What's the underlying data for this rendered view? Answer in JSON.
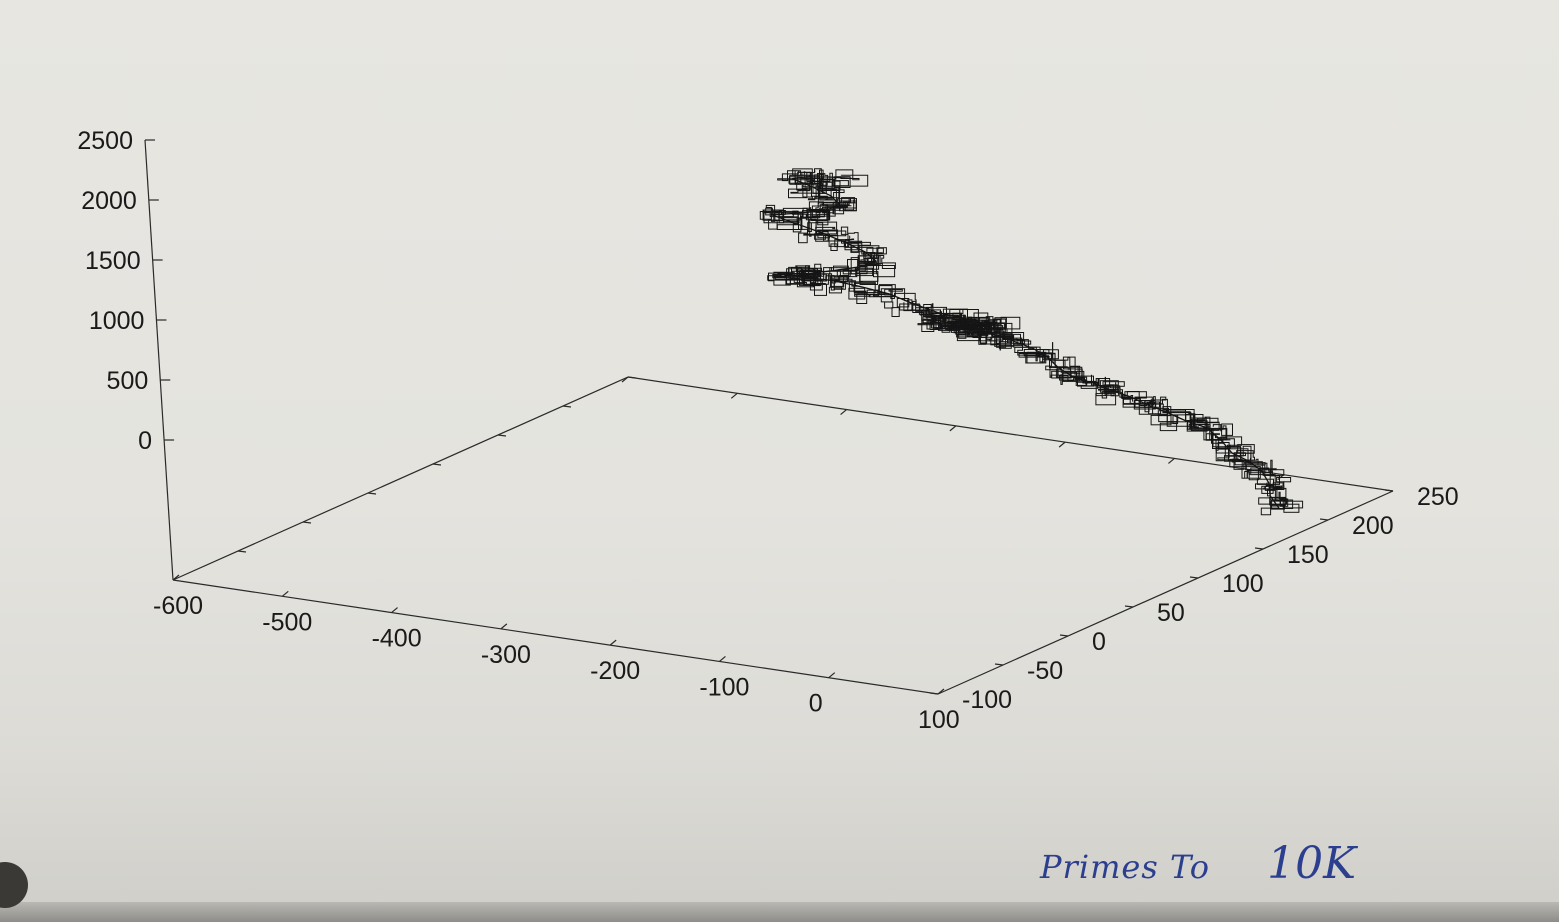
{
  "chart_data": {
    "type": "line",
    "projection": "3d",
    "title": "",
    "xlabel": "",
    "ylabel": "",
    "zlabel": "",
    "x_ticks": [
      "-600",
      "-500",
      "-400",
      "-300",
      "-200",
      "-100",
      "0",
      "100"
    ],
    "y_ticks": [
      "-100",
      "-50",
      "0",
      "50",
      "100",
      "150",
      "200",
      "250"
    ],
    "z_ticks": [
      "0",
      "500",
      "1000",
      "1500",
      "2000",
      "2500"
    ],
    "xlim": [
      -600,
      100
    ],
    "ylim": [
      -100,
      250
    ],
    "zlim": [
      0,
      2500
    ],
    "grid": false,
    "legend": "none",
    "line_color": "#111111",
    "series": [
      {
        "points": [
          [
            48,
            206,
            0
          ],
          [
            40,
            206,
            90
          ],
          [
            34,
            210,
            170
          ],
          [
            25,
            212,
            250
          ],
          [
            15,
            210,
            330
          ],
          [
            5,
            206,
            400
          ],
          [
            -10,
            210,
            470
          ],
          [
            -25,
            212,
            540
          ],
          [
            -40,
            208,
            600
          ],
          [
            -55,
            206,
            660
          ],
          [
            -70,
            203,
            720
          ],
          [
            -80,
            200,
            780
          ],
          [
            -95,
            196,
            840
          ],
          [
            -105,
            192,
            900
          ],
          [
            -118,
            188,
            950
          ],
          [
            -135,
            190,
            1000
          ],
          [
            -150,
            194,
            1050
          ],
          [
            -165,
            196,
            1090
          ],
          [
            -185,
            196,
            1130
          ],
          [
            -205,
            195,
            1170
          ],
          [
            -220,
            193,
            1200
          ],
          [
            -235,
            191,
            1230
          ],
          [
            -250,
            190,
            1250
          ],
          [
            -230,
            182,
            1290
          ],
          [
            -210,
            174,
            1330
          ],
          [
            -190,
            166,
            1380
          ],
          [
            -175,
            160,
            1430
          ],
          [
            -160,
            154,
            1480
          ],
          [
            -150,
            150,
            1520
          ],
          [
            -145,
            146,
            1560
          ],
          [
            -160,
            142,
            1600
          ],
          [
            -185,
            140,
            1630
          ],
          [
            -210,
            142,
            1660
          ],
          [
            -235,
            144,
            1700
          ],
          [
            -260,
            142,
            1740
          ],
          [
            -280,
            138,
            1780
          ],
          [
            -300,
            134,
            1800
          ],
          [
            -320,
            130,
            1820
          ],
          [
            -305,
            126,
            1860
          ],
          [
            -285,
            124,
            1900
          ],
          [
            -265,
            126,
            1940
          ],
          [
            -245,
            130,
            1980
          ],
          [
            -235,
            134,
            2020
          ],
          [
            -250,
            138,
            2060
          ],
          [
            -270,
            140,
            2100
          ],
          [
            -295,
            142,
            2140
          ],
          [
            -320,
            144,
            2170
          ],
          [
            -345,
            146,
            2200
          ],
          [
            -320,
            148,
            2240
          ],
          [
            -300,
            150,
            2280
          ],
          [
            -290,
            152,
            2330
          ],
          [
            -300,
            154,
            2380
          ],
          [
            -320,
            156,
            2420
          ],
          [
            -340,
            158,
            2450
          ],
          [
            -330,
            160,
            2470
          ],
          [
            -310,
            161,
            2490
          ],
          [
            -290,
            162,
            2500
          ]
        ]
      }
    ]
  },
  "annotation": {
    "text_small": "Primes To",
    "text_big": "10K"
  }
}
